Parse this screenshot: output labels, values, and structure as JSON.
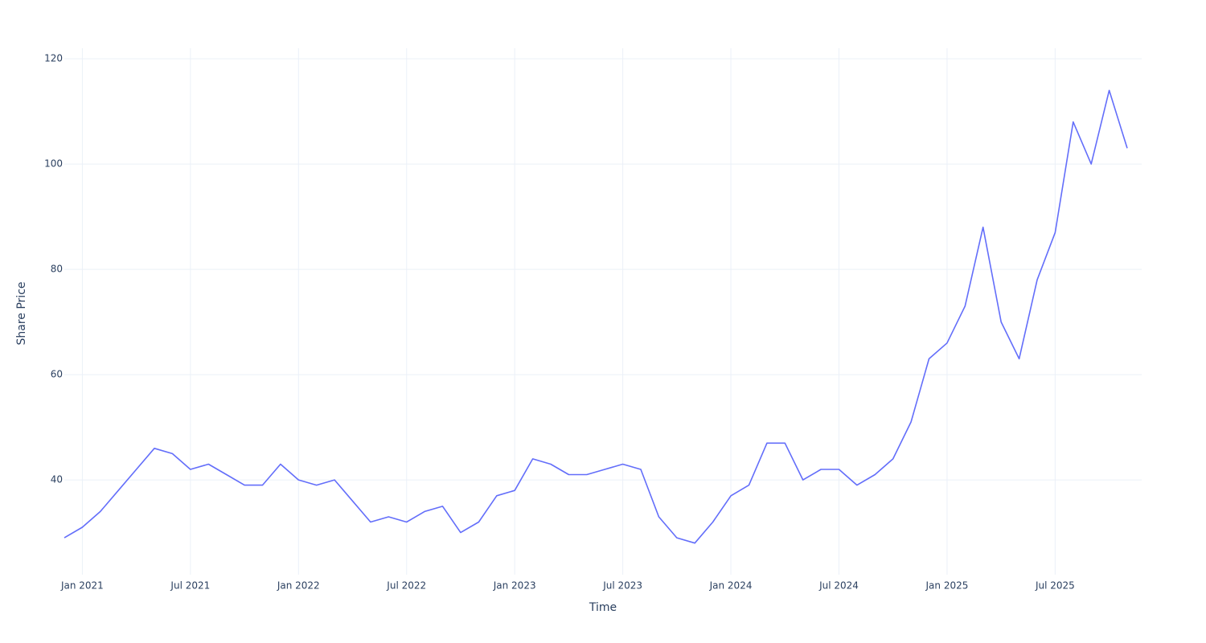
{
  "chart_data": {
    "type": "line",
    "x_label": "Time",
    "y_label": "Share Price",
    "x": [
      "2020-12",
      "2021-01",
      "2021-02",
      "2021-03",
      "2021-04",
      "2021-05",
      "2021-06",
      "2021-07",
      "2021-08",
      "2021-09",
      "2021-10",
      "2021-11",
      "2021-12",
      "2022-01",
      "2022-02",
      "2022-03",
      "2022-04",
      "2022-05",
      "2022-06",
      "2022-07",
      "2022-08",
      "2022-09",
      "2022-10",
      "2022-11",
      "2022-12",
      "2023-01",
      "2023-02",
      "2023-03",
      "2023-04",
      "2023-05",
      "2023-06",
      "2023-07",
      "2023-08",
      "2023-09",
      "2023-10",
      "2023-11",
      "2023-12",
      "2024-01",
      "2024-02",
      "2024-03",
      "2024-04",
      "2024-05",
      "2024-06",
      "2024-07",
      "2024-08",
      "2024-09",
      "2024-10",
      "2024-11",
      "2024-12",
      "2025-01",
      "2025-02",
      "2025-03",
      "2025-04",
      "2025-05",
      "2025-06",
      "2025-07",
      "2025-08",
      "2025-09",
      "2025-10",
      "2025-11"
    ],
    "series": [
      {
        "name": "Share Price",
        "color": "#636efa",
        "values": [
          29,
          31,
          34,
          38,
          42,
          46,
          45,
          42,
          43,
          41,
          39,
          39,
          43,
          40,
          39,
          40,
          36,
          32,
          33,
          32,
          34,
          35,
          30,
          32,
          37,
          38,
          44,
          43,
          41,
          41,
          42,
          43,
          42,
          33,
          29,
          28,
          32,
          37,
          39,
          47,
          47,
          40,
          42,
          42,
          39,
          41,
          44,
          51,
          63,
          66,
          73,
          88,
          70,
          63,
          78,
          87,
          108,
          100,
          114,
          103
        ]
      }
    ],
    "xlim": [
      "2020-12",
      "2025-11"
    ],
    "xticks": [
      {
        "value": "2021-01",
        "label": "Jan 2021"
      },
      {
        "value": "2021-07",
        "label": "Jul 2021"
      },
      {
        "value": "2022-01",
        "label": "Jan 2022"
      },
      {
        "value": "2022-07",
        "label": "Jul 2022"
      },
      {
        "value": "2023-01",
        "label": "Jan 2023"
      },
      {
        "value": "2023-07",
        "label": "Jul 2023"
      },
      {
        "value": "2024-01",
        "label": "Jan 2024"
      },
      {
        "value": "2024-07",
        "label": "Jul 2024"
      },
      {
        "value": "2025-01",
        "label": "Jan 2025"
      },
      {
        "value": "2025-07",
        "label": "Jul 2025"
      }
    ],
    "ylim": [
      22,
      122
    ],
    "yticks": [
      40,
      60,
      80,
      100,
      120
    ],
    "grid": true
  }
}
